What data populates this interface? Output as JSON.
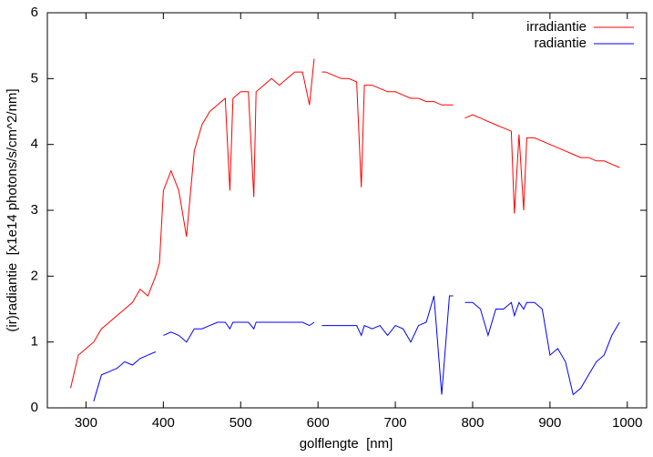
{
  "chart_data": {
    "type": "line",
    "xlabel": "golflengte  [nm]",
    "ylabel": "(ir)radiantie  [x1e14 photons/s/cm^2/nm]",
    "x": [
      280,
      290,
      300,
      310,
      320,
      330,
      340,
      350,
      360,
      370,
      380,
      390,
      395,
      400,
      410,
      420,
      430,
      440,
      450,
      460,
      470,
      480,
      486,
      490,
      500,
      510,
      517,
      520,
      530,
      540,
      550,
      560,
      570,
      580,
      589,
      595,
      600,
      605,
      610,
      620,
      630,
      640,
      650,
      656,
      660,
      670,
      680,
      690,
      700,
      710,
      720,
      730,
      740,
      750,
      760,
      770,
      775,
      780,
      785,
      790,
      800,
      810,
      820,
      830,
      840,
      850,
      854,
      860,
      866,
      870,
      880,
      890,
      900,
      910,
      920,
      930,
      940,
      950,
      960,
      970,
      980,
      990
    ],
    "series": [
      {
        "name": "irradiantie",
        "color": "#ff0000",
        "values": [
          0.3,
          0.8,
          0.9,
          1.0,
          1.2,
          1.3,
          1.4,
          1.5,
          1.6,
          1.8,
          1.7,
          2.0,
          2.2,
          3.3,
          3.6,
          3.3,
          2.6,
          3.9,
          4.3,
          4.5,
          4.6,
          4.7,
          3.3,
          4.7,
          4.8,
          4.8,
          3.2,
          4.8,
          4.9,
          5.0,
          4.9,
          5.0,
          5.1,
          5.1,
          4.6,
          5.3,
          null,
          5.1,
          5.1,
          5.05,
          5.0,
          5.0,
          4.95,
          3.35,
          4.9,
          4.9,
          4.85,
          4.8,
          4.8,
          4.75,
          4.7,
          4.7,
          4.65,
          4.65,
          4.6,
          4.6,
          4.6,
          null,
          null,
          4.4,
          4.45,
          4.4,
          4.35,
          4.3,
          4.25,
          4.2,
          2.95,
          4.15,
          3.0,
          4.1,
          4.1,
          4.05,
          4.0,
          3.95,
          3.9,
          3.85,
          3.8,
          3.8,
          3.75,
          3.75,
          3.7,
          3.65
        ]
      },
      {
        "name": "radiantie",
        "color": "#0000ff",
        "values": [
          null,
          null,
          null,
          0.1,
          0.5,
          0.55,
          0.6,
          0.7,
          0.65,
          0.75,
          0.8,
          0.85,
          null,
          1.1,
          1.15,
          1.1,
          1.0,
          1.2,
          1.2,
          1.25,
          1.3,
          1.3,
          1.2,
          1.3,
          1.3,
          1.3,
          1.2,
          1.3,
          1.3,
          1.3,
          1.3,
          1.3,
          1.3,
          1.3,
          1.25,
          1.3,
          null,
          1.25,
          1.25,
          1.25,
          1.25,
          1.25,
          1.25,
          1.1,
          1.25,
          1.2,
          1.25,
          1.1,
          1.25,
          1.2,
          1.0,
          1.25,
          1.3,
          1.7,
          0.2,
          1.7,
          1.7,
          null,
          null,
          1.6,
          1.6,
          1.5,
          1.1,
          1.5,
          1.5,
          1.6,
          1.4,
          1.6,
          1.5,
          1.6,
          1.6,
          1.5,
          0.8,
          0.9,
          0.7,
          0.2,
          0.3,
          0.5,
          0.7,
          0.8,
          1.1,
          1.3
        ]
      }
    ],
    "xlim": [
      250,
      1025
    ],
    "xticks": [
      300,
      400,
      500,
      600,
      700,
      800,
      900,
      1000
    ],
    "ylim": [
      0,
      6
    ],
    "yticks": [
      0,
      1,
      2,
      3,
      4,
      5,
      6
    ],
    "legend": "top right"
  }
}
